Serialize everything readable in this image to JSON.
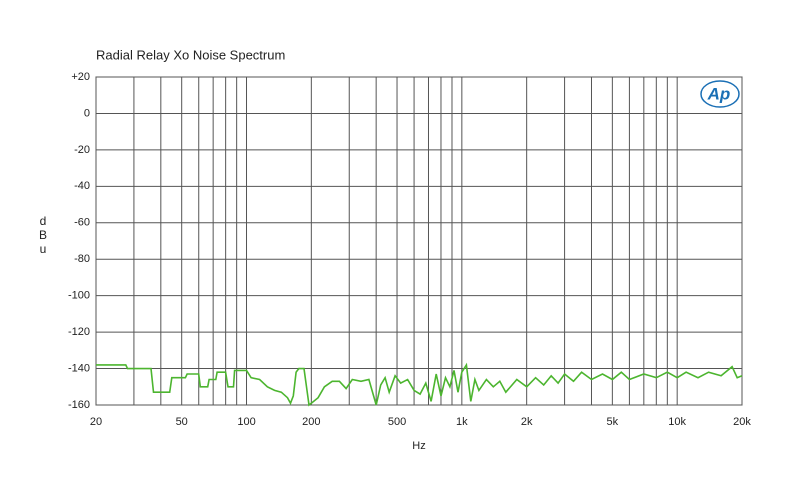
{
  "chart_data": {
    "type": "line",
    "title": "Radial Relay Xo Noise Spectrum",
    "x_label": "Hz",
    "y_label": "dBu",
    "logo": "Ap",
    "x_scale": "log",
    "xlim": [
      20,
      20000
    ],
    "xticks": [
      20,
      50,
      100,
      200,
      500,
      {
        "value": 1000,
        "label": "1k"
      },
      {
        "value": 2000,
        "label": "2k"
      },
      {
        "value": 5000,
        "label": "5k"
      },
      {
        "value": 10000,
        "label": "10k"
      },
      {
        "value": 20000,
        "label": "20k"
      }
    ],
    "x_minor_ticks": [
      30,
      40,
      60,
      70,
      80,
      90,
      300,
      400,
      600,
      700,
      800,
      900,
      3000,
      4000,
      6000,
      7000,
      8000,
      9000
    ],
    "ylim": [
      -160,
      20
    ],
    "yticks": [
      {
        "value": 20,
        "label": "+20"
      },
      0,
      -20,
      -40,
      -60,
      -80,
      -100,
      -120,
      -140,
      -160
    ],
    "grid": true,
    "color": "#4cb52f",
    "x": [
      20,
      27.5,
      28,
      36,
      37,
      44,
      45,
      52,
      53,
      60,
      61,
      66,
      67,
      72,
      73,
      80,
      82,
      87,
      88,
      100,
      105,
      115,
      125,
      135,
      145,
      155,
      160,
      165,
      170,
      175,
      185,
      190,
      195,
      200,
      215,
      230,
      250,
      270,
      290,
      310,
      340,
      370,
      400,
      420,
      440,
      460,
      490,
      520,
      560,
      600,
      640,
      680,
      720,
      760,
      800,
      840,
      880,
      920,
      960,
      1000,
      1050,
      1100,
      1150,
      1200,
      1300,
      1400,
      1500,
      1600,
      1800,
      2000,
      2200,
      2400,
      2600,
      2800,
      3000,
      3300,
      3600,
      4000,
      4500,
      5000,
      5500,
      6000,
      7000,
      8000,
      9000,
      10000,
      11000,
      12500,
      14000,
      16000,
      18000,
      19000,
      20000
    ],
    "values": [
      -138,
      -138,
      -140,
      -140,
      -153,
      -153,
      -145,
      -145,
      -143,
      -143,
      -150,
      -150,
      -146,
      -146,
      -142,
      -142,
      -150,
      -150,
      -141,
      -141,
      -145,
      -146,
      -150,
      -152,
      -153,
      -156,
      -159,
      -155,
      -142,
      -140,
      -140,
      -150,
      -160,
      -159,
      -156,
      -150,
      -147,
      -147,
      -151,
      -146,
      -147,
      -146,
      -160,
      -149,
      -145,
      -153,
      -144,
      -148,
      -146,
      -152,
      -154,
      -148,
      -158,
      -143,
      -155,
      -145,
      -150,
      -141,
      -153,
      -142,
      -138,
      -158,
      -146,
      -152,
      -146,
      -150,
      -147,
      -153,
      -146,
      -150,
      -145,
      -149,
      -144,
      -148,
      -143,
      -147,
      -142,
      -146,
      -143,
      -146,
      -142,
      -146,
      -143,
      -145,
      -142,
      -145,
      -142,
      -145,
      -142,
      -144,
      -139,
      -145,
      -144
    ]
  }
}
